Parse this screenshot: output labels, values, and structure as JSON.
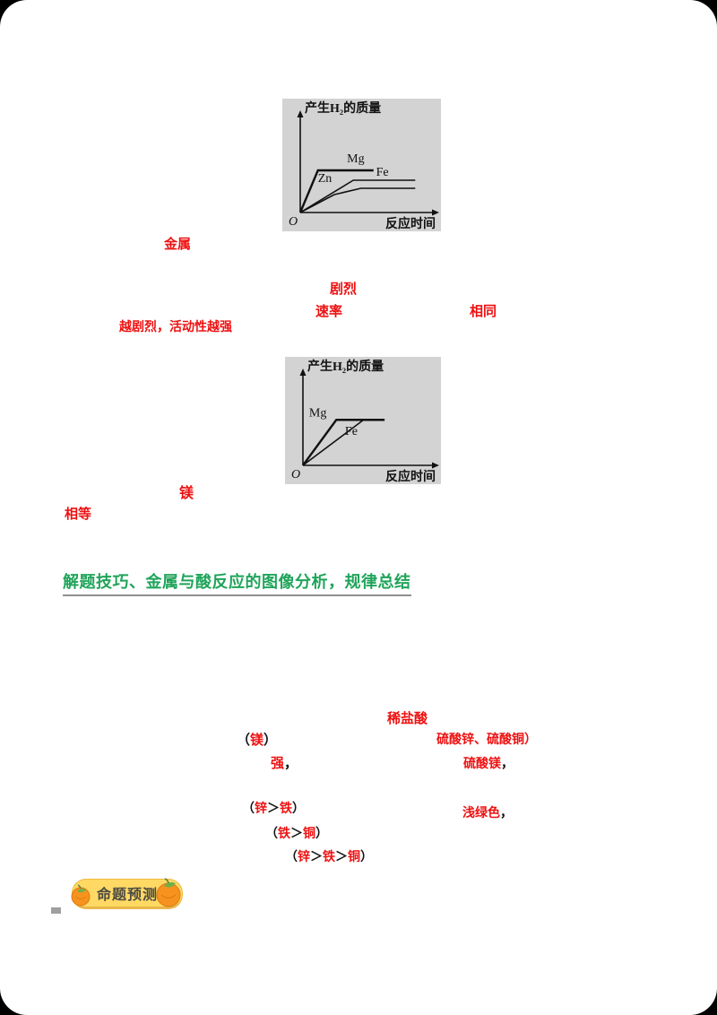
{
  "colors": {
    "answer_red": "#EE1111",
    "heading_green": "#1FA45A",
    "badge_yellow": "#FFD964",
    "badge_border": "#EFB93F",
    "orange_fruit": "#F6921E",
    "leaf_green": "#6AB04C",
    "chart_background": "#D3D3D3",
    "page_corner": "#000000"
  },
  "chart_data": [
    {
      "id": "chart1",
      "type": "line",
      "title": "",
      "ylabel": "产生H₂的质量",
      "xlabel": "反应时间",
      "origin": "O",
      "x_range": [
        0,
        1
      ],
      "y_range": [
        0,
        1
      ],
      "grid": false,
      "legend_position": "inline-labels",
      "series": [
        {
          "name": "Mg",
          "points": [
            [
              0,
              0
            ],
            [
              0.14,
              0.47
            ],
            [
              0.58,
              0.47
            ]
          ],
          "label_pos": [
            0.37,
            0.56
          ]
        },
        {
          "name": "Zn",
          "points": [
            [
              0,
              0
            ],
            [
              0.27,
              0.2
            ],
            [
              0.48,
              0.27
            ],
            [
              0.91,
              0.27
            ]
          ],
          "label_pos": [
            0.14,
            0.34
          ]
        },
        {
          "name": "Fe",
          "points": [
            [
              0,
              0
            ],
            [
              0.42,
              0.36
            ],
            [
              0.91,
              0.36
            ]
          ],
          "label_pos": [
            0.6,
            0.41
          ]
        }
      ]
    },
    {
      "id": "chart2",
      "type": "line",
      "title": "",
      "ylabel": "产生H₂的质量",
      "xlabel": "反应时间",
      "origin": "O",
      "x_range": [
        0,
        1
      ],
      "y_range": [
        0,
        1
      ],
      "grid": false,
      "legend_position": "inline-labels",
      "series": [
        {
          "name": "Mg",
          "points": [
            [
              0,
              0
            ],
            [
              0.27,
              0.54
            ],
            [
              0.66,
              0.54
            ]
          ],
          "label_pos": [
            0.05,
            0.58
          ]
        },
        {
          "name": "Fe",
          "points": [
            [
              0,
              0
            ],
            [
              0.49,
              0.54
            ],
            [
              0.66,
              0.54
            ]
          ],
          "label_pos": [
            0.34,
            0.36
          ]
        }
      ]
    }
  ],
  "fill_ins": {
    "metal_word": "金属",
    "vigorous": "剧烈",
    "rate": "速率",
    "same": "相同",
    "conclusion": "越剧烈，活动性越强",
    "mg_answer": "镁",
    "equal": "相等",
    "dilute_acid": "稀盐酸",
    "paren_mg": {
      "open": "（",
      "text": "镁",
      "close": "）"
    },
    "strong": {
      "text": "强",
      "punct": "，"
    },
    "salts_line1": "硫酸锌、硫酸铜）",
    "salts_line2": {
      "text": "硫酸镁",
      "punct": "，"
    },
    "order1": {
      "open": "（",
      "a": "锌",
      "gt": "＞",
      "b": "铁",
      "close": "）"
    },
    "solution_color": {
      "text": "浅绿色",
      "punct": "，"
    },
    "order2": {
      "open": "（",
      "a": "铁",
      "gt": "＞",
      "b": "铜",
      "close": "）"
    },
    "order3": {
      "open": "（",
      "a": "锌",
      "gt1": "＞",
      "b": "铁",
      "gt2": "＞",
      "c": "铜",
      "close": "）"
    }
  },
  "section_heading": {
    "text": "解题技巧、金属与酸反应的图像分析，规律总结"
  },
  "badge": {
    "label": "命题预测"
  }
}
